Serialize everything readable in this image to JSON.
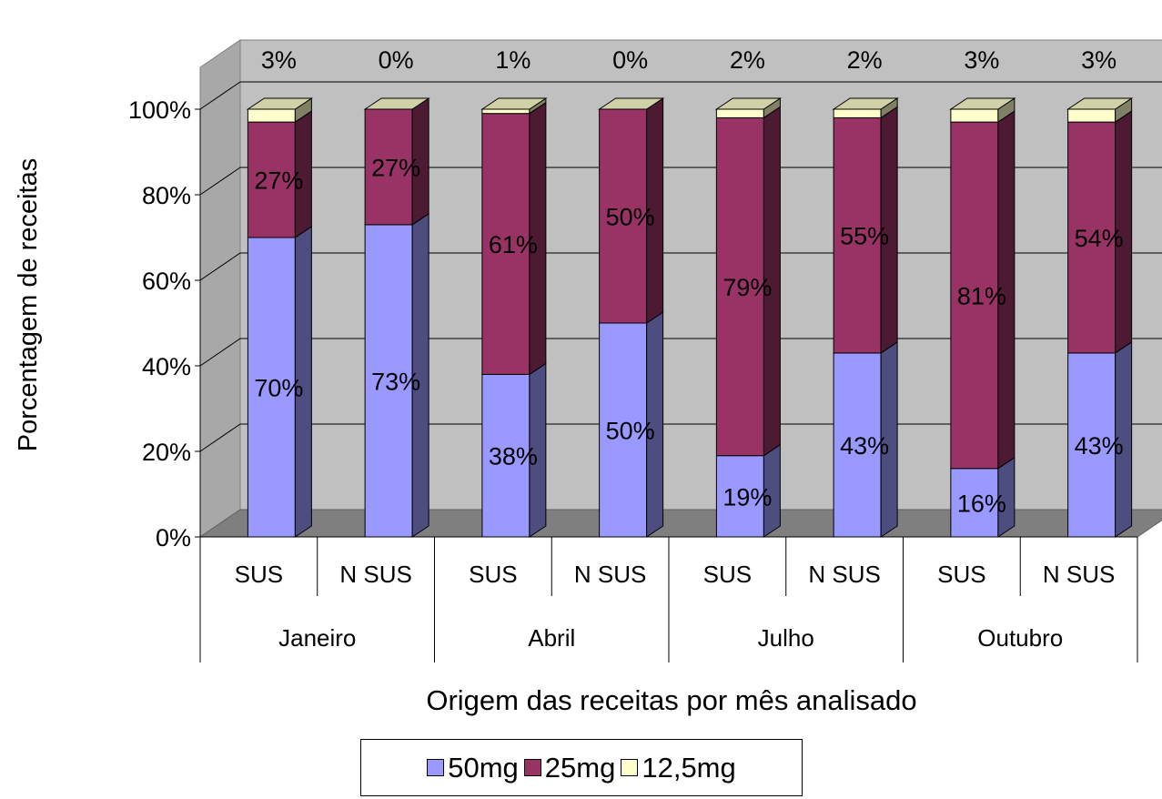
{
  "chart_data": {
    "type": "bar",
    "stacked": true,
    "style": "3d",
    "ylabel": "Porcentagem de receitas",
    "xlabel": "Origem das receitas por mês analisado",
    "ylim": [
      0,
      100
    ],
    "y_ticks": [
      "0%",
      "20%",
      "40%",
      "60%",
      "80%",
      "100%"
    ],
    "categories": [
      "SUS",
      "N SUS",
      "SUS",
      "N SUS",
      "SUS",
      "N SUS",
      "SUS",
      "N SUS"
    ],
    "groups": [
      {
        "label": "Janeiro",
        "span": 2
      },
      {
        "label": "Abril",
        "span": 2
      },
      {
        "label": "Julho",
        "span": 2
      },
      {
        "label": "Outubro",
        "span": 2
      }
    ],
    "series": [
      {
        "name": "50mg",
        "color": "#9999ff",
        "values": [
          70,
          73,
          38,
          50,
          19,
          43,
          16,
          43
        ],
        "labels": [
          "70%",
          "73%",
          "38%",
          "50%",
          "19%",
          "43%",
          "16%",
          "43%"
        ]
      },
      {
        "name": "25mg",
        "color": "#993366",
        "values": [
          27,
          27,
          61,
          50,
          79,
          55,
          81,
          54
        ],
        "labels": [
          "27%",
          "27%",
          "61%",
          "50%",
          "79%",
          "55%",
          "81%",
          "54%"
        ]
      },
      {
        "name": "12,5mg",
        "color": "#ffffcc",
        "values": [
          3,
          0,
          1,
          0,
          2,
          2,
          3,
          3
        ],
        "labels": [
          "3%",
          "0%",
          "1%",
          "0%",
          "2%",
          "2%",
          "3%",
          "3%"
        ]
      }
    ],
    "grid": true,
    "legend_position": "bottom"
  }
}
